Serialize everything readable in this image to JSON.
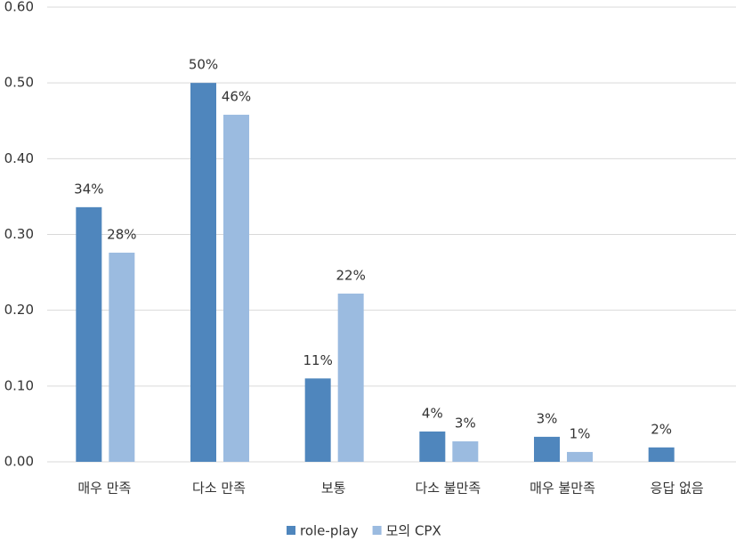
{
  "chart_data": {
    "type": "bar",
    "categories": [
      "매우 만족",
      "다소 만족",
      "보통",
      "다소 불만족",
      "매우 불만족",
      "응답 없음"
    ],
    "series": [
      {
        "name": "role-play",
        "color": "#4f86bd",
        "values": [
          0.336,
          0.5,
          0.11,
          0.04,
          0.033,
          0.019
        ],
        "value_labels": [
          "34%",
          "50%",
          "11%",
          "4%",
          "3%",
          "2%"
        ]
      },
      {
        "name": "모의 CPX",
        "color": "#9bbbe0",
        "values": [
          0.276,
          0.458,
          0.222,
          0.027,
          0.013,
          null
        ],
        "value_labels": [
          "28%",
          "46%",
          "22%",
          "3%",
          "1%",
          null
        ]
      }
    ],
    "ylim": [
      0,
      0.6
    ],
    "yticks": [
      {
        "value": 0,
        "label": "0.00"
      },
      {
        "value": 0.1,
        "label": "0.10"
      },
      {
        "value": 0.2,
        "label": "0.20"
      },
      {
        "value": 0.3,
        "label": "0.30"
      },
      {
        "value": 0.4,
        "label": "0.40"
      },
      {
        "value": 0.5,
        "label": "0.50"
      },
      {
        "value": 0.6,
        "label": "0.60"
      }
    ],
    "grid": true,
    "legend": "bottom"
  }
}
